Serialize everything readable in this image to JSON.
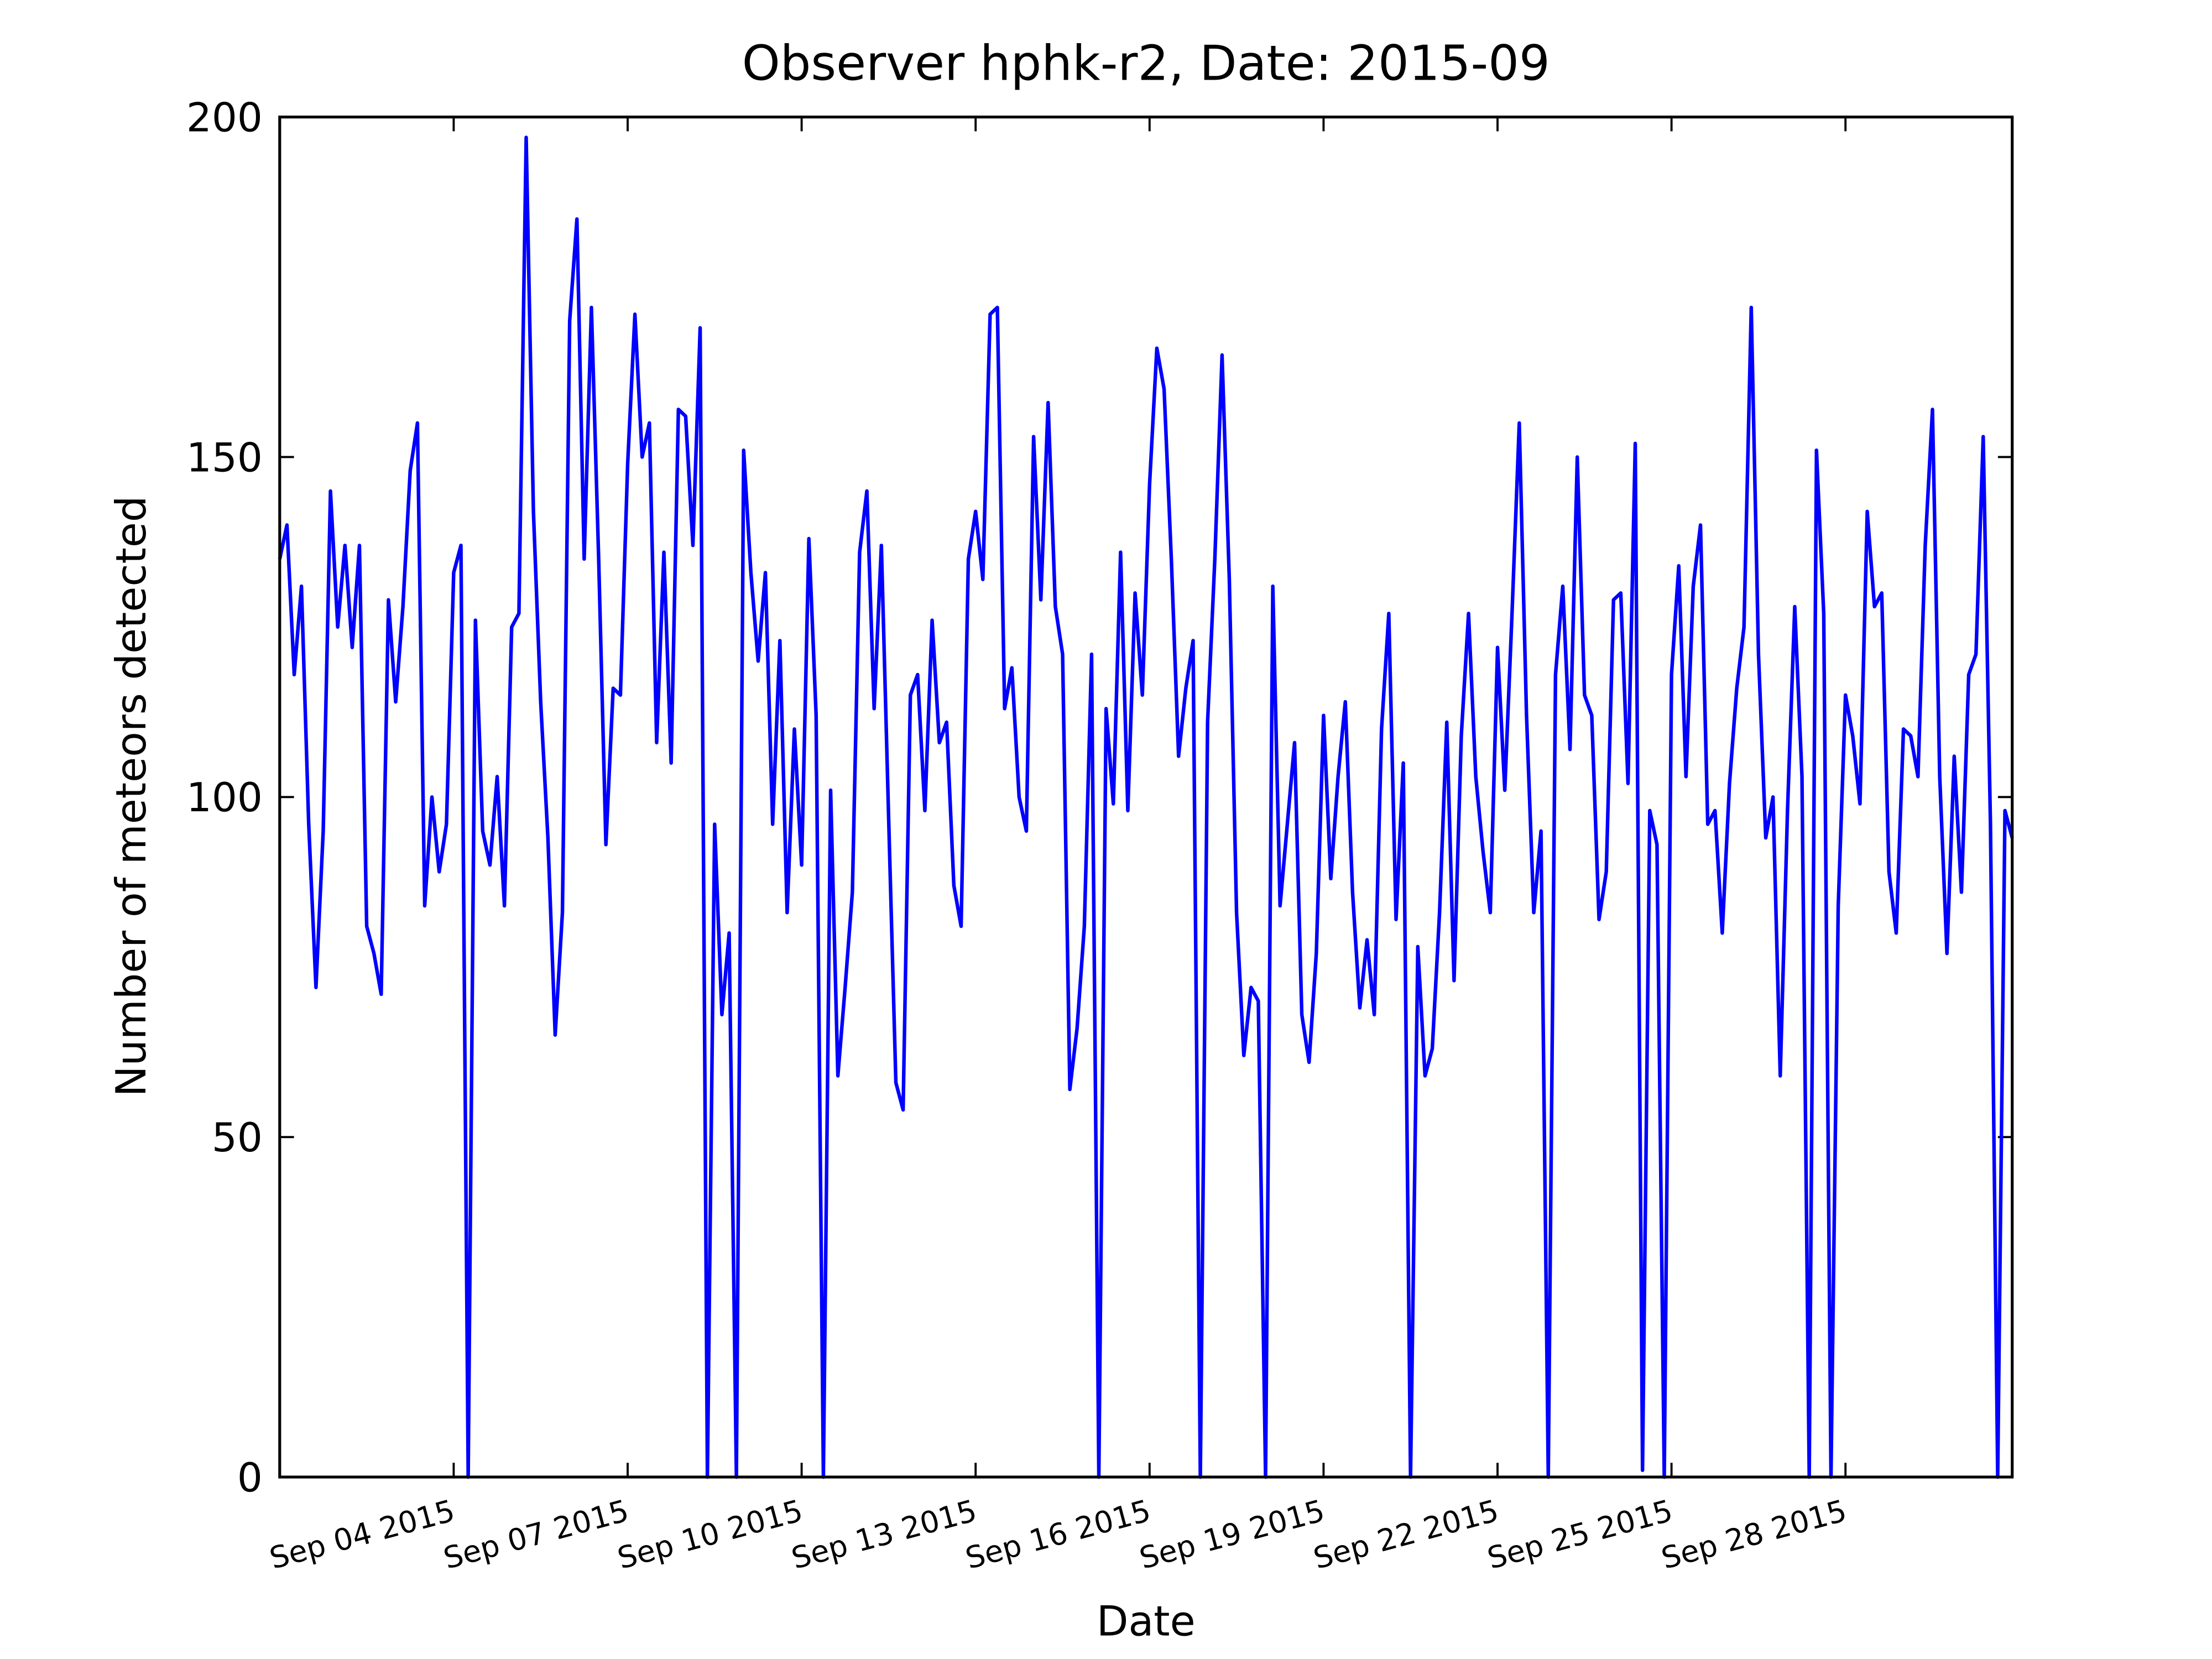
{
  "chart_data": {
    "type": "line",
    "title": "Observer hphk-r2, Date: 2015-09",
    "x_label": "Date",
    "y_label": "Number of meteors detected",
    "color": "#0000ff",
    "x": [
      1,
      1.125,
      1.25,
      1.375,
      1.5,
      1.625,
      1.75,
      1.875,
      2,
      2.125,
      2.25,
      2.375,
      2.5,
      2.625,
      2.75,
      2.875,
      3,
      3.125,
      3.25,
      3.375,
      3.5,
      3.625,
      3.75,
      3.875,
      4,
      4.125,
      4.25,
      4.375,
      4.5,
      4.625,
      4.75,
      4.875,
      5,
      5.125,
      5.25,
      5.375,
      5.5,
      5.625,
      5.75,
      5.875,
      6,
      6.125,
      6.25,
      6.375,
      6.5,
      6.625,
      6.75,
      6.875,
      7,
      7.125,
      7.25,
      7.375,
      7.5,
      7.625,
      7.75,
      7.875,
      8,
      8.125,
      8.25,
      8.375,
      8.5,
      8.625,
      8.75,
      8.875,
      9,
      9.125,
      9.25,
      9.375,
      9.5,
      9.625,
      9.75,
      9.875,
      10,
      10.125,
      10.25,
      10.375,
      10.5,
      10.625,
      10.75,
      10.875,
      11,
      11.125,
      11.25,
      11.375,
      11.5,
      11.625,
      11.75,
      11.875,
      12,
      12.125,
      12.25,
      12.375,
      12.5,
      12.625,
      12.75,
      12.875,
      13,
      13.125,
      13.25,
      13.375,
      13.5,
      13.625,
      13.75,
      13.875,
      14,
      14.125,
      14.25,
      14.375,
      14.5,
      14.625,
      14.75,
      14.875,
      15,
      15.125,
      15.25,
      15.375,
      15.5,
      15.625,
      15.75,
      15.875,
      16,
      16.125,
      16.25,
      16.375,
      16.5,
      16.625,
      16.75,
      16.875,
      17,
      17.125,
      17.25,
      17.375,
      17.5,
      17.625,
      17.75,
      17.875,
      18,
      18.125,
      18.25,
      18.375,
      18.5,
      18.625,
      18.75,
      18.875,
      19,
      19.125,
      19.25,
      19.375,
      19.5,
      19.625,
      19.75,
      19.875,
      20,
      20.125,
      20.25,
      20.375,
      20.5,
      20.625,
      20.75,
      20.875,
      21,
      21.125,
      21.25,
      21.375,
      21.5,
      21.625,
      21.75,
      21.875,
      22,
      22.125,
      22.25,
      22.375,
      22.5,
      22.625,
      22.75,
      22.875,
      23,
      23.125,
      23.25,
      23.375,
      23.5,
      23.625,
      23.75,
      23.875,
      24,
      24.125,
      24.25,
      24.375,
      24.5,
      24.625,
      24.75,
      24.875,
      25,
      25.125,
      25.25,
      25.375,
      25.5,
      25.625,
      25.75,
      25.875,
      26,
      26.125,
      26.25,
      26.375,
      26.5,
      26.625,
      26.75,
      26.875,
      27,
      27.125,
      27.25,
      27.375,
      27.5,
      27.625,
      27.75,
      27.875,
      28,
      28.125,
      28.25,
      28.375,
      28.5,
      28.625,
      28.75,
      28.875,
      29,
      29.125,
      29.25,
      29.375,
      29.5,
      29.625,
      29.75,
      29.875,
      30,
      30.125,
      30.25,
      30.375,
      30.5,
      30.625,
      30.75,
      30.875
    ],
    "values": [
      135,
      140,
      118,
      131,
      96,
      72,
      95,
      145,
      125,
      137,
      122,
      137,
      81,
      77,
      71,
      129,
      114,
      128,
      148,
      155,
      84,
      100,
      89,
      96,
      133,
      137,
      0,
      126,
      95,
      90,
      103,
      84,
      125,
      127,
      197,
      142,
      114,
      94,
      65,
      83,
      170,
      185,
      135,
      172,
      135,
      93,
      116,
      115,
      149,
      171,
      150,
      155,
      108,
      136,
      105,
      157,
      156,
      137,
      169,
      0,
      96,
      68,
      80,
      0,
      151,
      133,
      120,
      133,
      96,
      123,
      83,
      110,
      90,
      138,
      112,
      0,
      101,
      59,
      72,
      86,
      136,
      145,
      113,
      137,
      97,
      58,
      54,
      115,
      118,
      98,
      126,
      108,
      111,
      87,
      81,
      135,
      142,
      132,
      171,
      172,
      113,
      119,
      100,
      95,
      153,
      129,
      158,
      128,
      121,
      57,
      66,
      81,
      121,
      0,
      113,
      99,
      136,
      98,
      130,
      115,
      146,
      166,
      160,
      135,
      106,
      116,
      123,
      0,
      111,
      135,
      165,
      132,
      83,
      62,
      72,
      70,
      0,
      131,
      84,
      96,
      108,
      68,
      61,
      77,
      112,
      88,
      103,
      114,
      86,
      69,
      79,
      68,
      110,
      127,
      82,
      105,
      0,
      78,
      59,
      63,
      83,
      111,
      73,
      109,
      127,
      103,
      92,
      83,
      122,
      101,
      127,
      155,
      112,
      83,
      95,
      0,
      118,
      131,
      107,
      150,
      115,
      112,
      82,
      89,
      129,
      130,
      102,
      152,
      1,
      98,
      93,
      0,
      118,
      134,
      103,
      131,
      140,
      96,
      98,
      80,
      102,
      116,
      125,
      172,
      121,
      94,
      100,
      59,
      98,
      128,
      103,
      0,
      151,
      127,
      0,
      84,
      115,
      109,
      99,
      142,
      128,
      130,
      89,
      80,
      110,
      109,
      103,
      137,
      157,
      103,
      77,
      106,
      86,
      118,
      121,
      153,
      96,
      0,
      98,
      94
    ],
    "xlim": [
      1,
      30.875
    ],
    "xticks": [
      {
        "value": 4,
        "label": "Sep 04 2015"
      },
      {
        "value": 7,
        "label": "Sep 07 2015"
      },
      {
        "value": 10,
        "label": "Sep 10 2015"
      },
      {
        "value": 13,
        "label": "Sep 13 2015"
      },
      {
        "value": 16,
        "label": "Sep 16 2015"
      },
      {
        "value": 19,
        "label": "Sep 19 2015"
      },
      {
        "value": 22,
        "label": "Sep 22 2015"
      },
      {
        "value": 25,
        "label": "Sep 25 2015"
      },
      {
        "value": 28,
        "label": "Sep 28 2015"
      }
    ],
    "ylim": [
      0,
      200
    ],
    "yticks": [
      0,
      50,
      100,
      150,
      200
    ],
    "grid": false
  }
}
